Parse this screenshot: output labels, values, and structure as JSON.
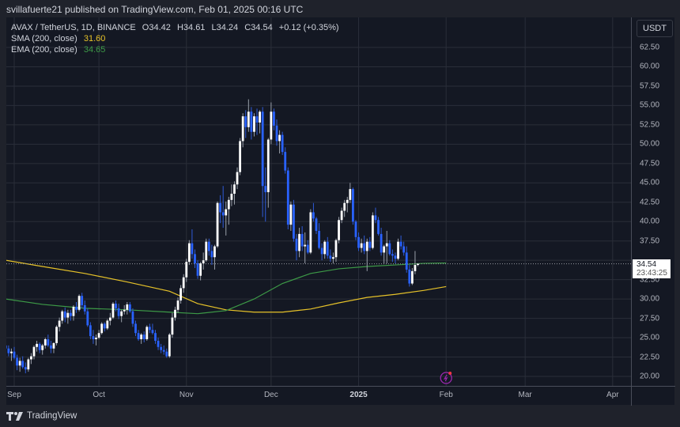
{
  "header": {
    "publisher_text": "svillafuerte21 published on TradingView.com, Feb 01, 2025 00:16 UTC"
  },
  "legend": {
    "symbol": "AVAX / TetherUS, 1D, BINANCE",
    "open": "O34.42",
    "high": "H34.61",
    "low": "L34.24",
    "close": "C34.54",
    "change": "+0.12 (+0.35%)",
    "sma_label": "SMA (200, close)",
    "sma_value": "31.60",
    "ema_label": "EMA (200, close)",
    "ema_value": "34.65"
  },
  "price_axis": {
    "currency": "USDT",
    "last_price": "34.54",
    "countdown": "23:43:25"
  },
  "footer": {
    "brand": "TradingView"
  },
  "colors": {
    "background": "#141823",
    "grid": "#2a2e39",
    "up": "#ffffff",
    "down": "#2962ff",
    "sma": "#e6c229",
    "ema": "#3d9a47",
    "last_line": "#9598a1",
    "event_icon": "#9c27b0"
  },
  "chart_data": {
    "type": "candlestick",
    "title": "AVAX / TetherUS, 1D, BINANCE",
    "xlabel": "",
    "ylabel": "USDT",
    "ylim": [
      18.5,
      64.5
    ],
    "y_ticks": [
      "62.50",
      "60.00",
      "57.50",
      "55.00",
      "52.50",
      "50.00",
      "47.50",
      "45.00",
      "42.50",
      "40.00",
      "37.50",
      "35.00",
      "32.50",
      "30.00",
      "27.50",
      "25.00",
      "22.50",
      "20.00"
    ],
    "x_ticks": [
      {
        "label": "Sep",
        "day": 0
      },
      {
        "label": "Oct",
        "day": 30
      },
      {
        "label": "Nov",
        "day": 61
      },
      {
        "label": "Dec",
        "day": 91
      },
      {
        "label": "2025",
        "day": 122,
        "bold": true
      },
      {
        "label": "Feb",
        "day": 153
      },
      {
        "label": "Mar",
        "day": 181
      },
      {
        "label": "Apr",
        "day": 212
      }
    ],
    "grid": true,
    "legend_position": "top-left",
    "first_day_offset": -3,
    "candles": [
      [
        24.0,
        24.8,
        23.2,
        23.6
      ],
      [
        23.6,
        24.0,
        22.6,
        23.0
      ],
      [
        23.0,
        23.6,
        22.0,
        23.2
      ],
      [
        23.2,
        23.8,
        22.2,
        22.4
      ],
      [
        22.4,
        22.8,
        20.8,
        21.4
      ],
      [
        21.4,
        22.4,
        20.6,
        22.0
      ],
      [
        22.0,
        22.6,
        21.0,
        21.2
      ],
      [
        21.2,
        21.8,
        20.4,
        20.9
      ],
      [
        20.9,
        22.4,
        20.6,
        22.2
      ],
      [
        22.2,
        23.0,
        21.6,
        22.6
      ],
      [
        22.6,
        24.0,
        22.2,
        23.8
      ],
      [
        23.8,
        24.6,
        23.2,
        24.2
      ],
      [
        24.2,
        24.4,
        23.0,
        23.4
      ],
      [
        23.4,
        24.2,
        22.8,
        24.0
      ],
      [
        24.0,
        25.0,
        23.6,
        24.8
      ],
      [
        24.8,
        25.4,
        23.8,
        24.0
      ],
      [
        24.0,
        24.6,
        23.0,
        23.6
      ],
      [
        23.6,
        24.4,
        23.0,
        24.3
      ],
      [
        24.3,
        26.6,
        24.0,
        26.4
      ],
      [
        26.4,
        27.6,
        25.8,
        27.2
      ],
      [
        27.2,
        28.6,
        26.8,
        28.4
      ],
      [
        28.4,
        28.9,
        27.0,
        27.6
      ],
      [
        27.6,
        28.6,
        26.8,
        28.2
      ],
      [
        28.2,
        28.6,
        27.2,
        27.8
      ],
      [
        27.8,
        29.2,
        27.2,
        29.0
      ],
      [
        29.0,
        29.6,
        28.2,
        28.6
      ],
      [
        28.6,
        30.6,
        28.4,
        30.4
      ],
      [
        30.4,
        30.8,
        28.8,
        29.2
      ],
      [
        29.2,
        29.8,
        28.0,
        28.4
      ],
      [
        28.4,
        28.8,
        26.4,
        26.6
      ],
      [
        26.6,
        27.0,
        24.8,
        25.2
      ],
      [
        25.2,
        26.0,
        24.2,
        24.8
      ],
      [
        24.8,
        25.4,
        24.0,
        25.0
      ],
      [
        25.0,
        26.0,
        24.8,
        25.6
      ],
      [
        25.6,
        27.0,
        25.4,
        26.8
      ],
      [
        26.8,
        27.0,
        25.8,
        26.2
      ],
      [
        26.2,
        27.4,
        26.0,
        27.2
      ],
      [
        27.2,
        28.2,
        26.6,
        27.6
      ],
      [
        27.6,
        29.6,
        27.4,
        29.4
      ],
      [
        29.4,
        29.8,
        28.4,
        28.8
      ],
      [
        28.8,
        29.4,
        27.4,
        27.8
      ],
      [
        27.8,
        28.6,
        27.0,
        28.4
      ],
      [
        28.4,
        29.2,
        28.0,
        28.6
      ],
      [
        28.6,
        29.6,
        28.0,
        29.3
      ],
      [
        29.3,
        29.6,
        28.2,
        28.4
      ],
      [
        28.4,
        28.8,
        26.4,
        26.8
      ],
      [
        26.8,
        27.2,
        25.2,
        25.6
      ],
      [
        25.6,
        26.0,
        24.6,
        24.8
      ],
      [
        24.8,
        25.6,
        24.2,
        25.4
      ],
      [
        25.4,
        25.8,
        24.4,
        24.8
      ],
      [
        24.8,
        26.6,
        24.6,
        26.4
      ],
      [
        26.4,
        26.8,
        25.6,
        26.0
      ],
      [
        26.0,
        26.8,
        25.4,
        25.6
      ],
      [
        25.6,
        26.0,
        24.2,
        24.6
      ],
      [
        24.6,
        25.0,
        23.4,
        23.8
      ],
      [
        23.8,
        24.2,
        23.0,
        23.4
      ],
      [
        23.4,
        24.0,
        22.8,
        23.2
      ],
      [
        23.2,
        23.6,
        22.4,
        22.6
      ],
      [
        22.6,
        25.6,
        22.4,
        25.4
      ],
      [
        25.4,
        28.2,
        25.0,
        27.6
      ],
      [
        27.6,
        29.0,
        27.2,
        28.6
      ],
      [
        28.6,
        30.2,
        28.2,
        29.8
      ],
      [
        29.8,
        31.8,
        29.4,
        31.4
      ],
      [
        31.4,
        33.2,
        30.8,
        32.8
      ],
      [
        32.8,
        35.2,
        32.2,
        34.8
      ],
      [
        34.8,
        37.6,
        34.4,
        37.2
      ],
      [
        37.2,
        39.0,
        35.2,
        35.8
      ],
      [
        35.8,
        36.4,
        34.0,
        34.6
      ],
      [
        34.6,
        35.0,
        32.6,
        33.0
      ],
      [
        33.0,
        34.8,
        32.4,
        34.6
      ],
      [
        34.6,
        36.0,
        33.8,
        35.0
      ],
      [
        35.0,
        37.8,
        34.8,
        37.4
      ],
      [
        37.4,
        37.8,
        35.6,
        36.2
      ],
      [
        36.2,
        37.0,
        34.4,
        35.4
      ],
      [
        35.4,
        37.0,
        33.8,
        36.8
      ],
      [
        36.8,
        42.6,
        36.6,
        42.4
      ],
      [
        42.4,
        43.4,
        39.8,
        41.2
      ],
      [
        41.2,
        44.6,
        39.2,
        40.8
      ],
      [
        40.8,
        42.6,
        38.2,
        41.6
      ],
      [
        41.6,
        43.2,
        39.6,
        42.8
      ],
      [
        42.8,
        44.8,
        42.0,
        43.6
      ],
      [
        43.6,
        45.2,
        42.2,
        44.8
      ],
      [
        44.8,
        47.0,
        44.2,
        46.4
      ],
      [
        46.4,
        50.8,
        46.0,
        50.4
      ],
      [
        50.4,
        54.0,
        49.6,
        53.6
      ],
      [
        53.6,
        54.4,
        50.8,
        52.2
      ],
      [
        52.2,
        55.8,
        51.6,
        54.2
      ],
      [
        54.2,
        54.8,
        50.6,
        51.6
      ],
      [
        51.6,
        54.0,
        51.0,
        53.6
      ],
      [
        53.6,
        54.6,
        51.2,
        52.8
      ],
      [
        52.8,
        54.4,
        51.4,
        54.2
      ],
      [
        54.2,
        54.8,
        40.6,
        44.6
      ],
      [
        44.6,
        47.0,
        40.0,
        43.8
      ],
      [
        43.8,
        50.8,
        41.8,
        50.6
      ],
      [
        50.6,
        55.4,
        50.0,
        54.2
      ],
      [
        54.2,
        54.6,
        51.8,
        52.4
      ],
      [
        52.4,
        53.2,
        49.8,
        50.4
      ],
      [
        50.4,
        51.8,
        48.8,
        51.2
      ],
      [
        51.2,
        51.6,
        48.6,
        49.0
      ],
      [
        49.0,
        49.6,
        46.2,
        46.6
      ],
      [
        46.6,
        47.0,
        39.0,
        39.6
      ],
      [
        39.6,
        42.6,
        38.8,
        42.2
      ],
      [
        42.2,
        42.8,
        37.4,
        37.8
      ],
      [
        37.8,
        38.4,
        35.0,
        36.2
      ],
      [
        36.2,
        39.2,
        35.4,
        38.4
      ],
      [
        38.4,
        39.4,
        36.2,
        36.8
      ],
      [
        36.8,
        38.6,
        34.6,
        37.0
      ],
      [
        37.0,
        37.6,
        35.8,
        36.0
      ],
      [
        36.0,
        41.6,
        35.8,
        41.2
      ],
      [
        41.2,
        42.4,
        40.0,
        40.4
      ],
      [
        40.4,
        40.6,
        38.4,
        38.8
      ],
      [
        38.8,
        39.8,
        36.4,
        36.6
      ],
      [
        36.6,
        37.2,
        35.0,
        35.8
      ],
      [
        35.8,
        37.6,
        35.2,
        37.4
      ],
      [
        37.4,
        38.0,
        35.2,
        35.6
      ],
      [
        35.6,
        36.4,
        34.8,
        35.2
      ],
      [
        35.2,
        36.0,
        34.6,
        35.4
      ],
      [
        35.4,
        37.8,
        34.8,
        37.6
      ],
      [
        37.6,
        40.6,
        37.2,
        40.2
      ],
      [
        40.2,
        41.8,
        39.8,
        41.4
      ],
      [
        41.4,
        42.8,
        40.6,
        42.4
      ],
      [
        42.4,
        43.2,
        41.2,
        42.8
      ],
      [
        42.8,
        45.0,
        42.4,
        44.2
      ],
      [
        44.2,
        44.4,
        39.6,
        40.0
      ],
      [
        40.0,
        40.2,
        37.6,
        38.0
      ],
      [
        38.0,
        38.6,
        36.2,
        36.6
      ],
      [
        36.6,
        37.8,
        36.0,
        37.2
      ],
      [
        37.2,
        38.2,
        35.8,
        36.2
      ],
      [
        36.2,
        37.8,
        33.6,
        37.4
      ],
      [
        37.4,
        38.0,
        36.2,
        36.6
      ],
      [
        36.6,
        41.2,
        36.4,
        40.8
      ],
      [
        40.8,
        41.8,
        39.8,
        40.2
      ],
      [
        40.2,
        40.6,
        38.2,
        38.4
      ],
      [
        38.4,
        39.2,
        35.6,
        36.0
      ],
      [
        36.0,
        37.0,
        34.6,
        36.8
      ],
      [
        36.8,
        38.8,
        34.6,
        37.2
      ],
      [
        37.2,
        37.6,
        35.6,
        35.8
      ],
      [
        35.8,
        36.4,
        34.8,
        35.6
      ],
      [
        35.6,
        36.0,
        34.6,
        35.2
      ],
      [
        35.2,
        37.8,
        35.0,
        37.4
      ],
      [
        37.4,
        38.2,
        36.4,
        36.8
      ],
      [
        36.8,
        37.4,
        35.6,
        36.0
      ],
      [
        36.0,
        36.8,
        33.4,
        33.8
      ],
      [
        33.8,
        34.4,
        31.6,
        32.0
      ],
      [
        32.0,
        34.0,
        31.8,
        33.6
      ],
      [
        33.6,
        36.2,
        33.2,
        34.4
      ],
      [
        34.4,
        34.61,
        34.24,
        34.54
      ]
    ],
    "series": [
      {
        "name": "SMA (200, close)",
        "color": "#e6c229",
        "points": [
          [
            -3,
            35.0
          ],
          [
            10,
            34.2
          ],
          [
            25,
            33.3
          ],
          [
            40,
            32.2
          ],
          [
            55,
            31.0
          ],
          [
            65,
            29.4
          ],
          [
            75,
            28.6
          ],
          [
            85,
            28.3
          ],
          [
            95,
            28.3
          ],
          [
            105,
            28.7
          ],
          [
            115,
            29.5
          ],
          [
            125,
            30.2
          ],
          [
            135,
            30.6
          ],
          [
            145,
            31.1
          ],
          [
            153,
            31.6
          ]
        ]
      },
      {
        "name": "EMA (200, close)",
        "color": "#3d9a47",
        "points": [
          [
            -3,
            30.0
          ],
          [
            10,
            29.3
          ],
          [
            25,
            28.8
          ],
          [
            40,
            28.6
          ],
          [
            55,
            28.3
          ],
          [
            65,
            28.1
          ],
          [
            75,
            28.5
          ],
          [
            85,
            30.0
          ],
          [
            95,
            32.0
          ],
          [
            105,
            33.3
          ],
          [
            115,
            33.9
          ],
          [
            125,
            34.2
          ],
          [
            135,
            34.4
          ],
          [
            145,
            34.6
          ],
          [
            153,
            34.65
          ]
        ]
      }
    ]
  }
}
